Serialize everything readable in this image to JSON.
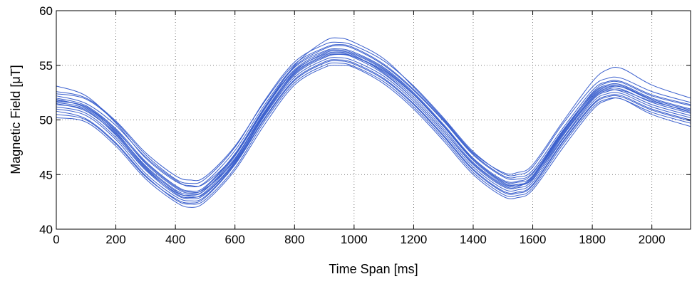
{
  "chart_data": {
    "type": "line",
    "xlabel": "Time Span [ms]",
    "ylabel": "Magnetic Field [μT]",
    "xlim": [
      0,
      2130
    ],
    "ylim": [
      40,
      60
    ],
    "x_ticks": [
      0,
      200,
      400,
      600,
      800,
      1000,
      1200,
      1400,
      1600,
      1800,
      2000
    ],
    "y_ticks": [
      40,
      45,
      50,
      55,
      60
    ],
    "grid": true,
    "grid_style": "dotted",
    "legend": "none",
    "line_color": "#3a5fcd",
    "x": [
      0,
      100,
      200,
      300,
      400,
      450,
      500,
      600,
      700,
      800,
      900,
      950,
      1000,
      1100,
      1200,
      1300,
      1400,
      1500,
      1550,
      1600,
      1700,
      1800,
      1850,
      1900,
      2000,
      2130
    ],
    "series": [
      {
        "values": [
          51.6,
          51.0,
          48.8,
          45.8,
          43.6,
          43.2,
          43.6,
          46.5,
          50.8,
          54.3,
          55.9,
          56.1,
          55.8,
          54.4,
          52.1,
          49.2,
          46.1,
          44.1,
          44.0,
          44.7,
          48.6,
          52.0,
          52.8,
          52.8,
          51.6,
          50.6
        ]
      },
      {
        "values": [
          52.0,
          51.3,
          49.2,
          46.2,
          44.0,
          43.5,
          43.9,
          46.9,
          51.2,
          54.8,
          56.3,
          56.5,
          56.2,
          54.8,
          52.5,
          49.6,
          46.5,
          44.5,
          44.4,
          45.1,
          49.0,
          52.4,
          53.2,
          53.2,
          52.0,
          51.0
        ]
      },
      {
        "values": [
          51.2,
          50.6,
          48.4,
          45.4,
          43.2,
          42.8,
          43.2,
          46.1,
          50.4,
          53.9,
          55.5,
          55.7,
          55.4,
          54.0,
          51.7,
          48.8,
          45.7,
          43.7,
          43.6,
          44.3,
          48.2,
          51.6,
          52.4,
          52.4,
          51.2,
          50.2
        ]
      },
      {
        "values": [
          52.4,
          51.9,
          49.8,
          46.8,
          44.6,
          44.2,
          44.6,
          47.5,
          51.8,
          55.3,
          56.9,
          57.1,
          56.8,
          55.4,
          53.1,
          50.2,
          47.1,
          45.1,
          45.0,
          45.7,
          49.6,
          53.0,
          53.8,
          53.8,
          52.6,
          51.6
        ]
      },
      {
        "values": [
          50.8,
          50.1,
          47.9,
          44.9,
          42.7,
          42.3,
          42.7,
          45.6,
          49.9,
          53.4,
          55.0,
          55.2,
          54.9,
          53.5,
          51.2,
          48.3,
          45.2,
          43.2,
          43.1,
          43.8,
          47.7,
          51.1,
          51.9,
          51.9,
          50.7,
          49.7
        ]
      },
      {
        "values": [
          51.9,
          51.1,
          49.0,
          46.1,
          43.9,
          43.4,
          43.7,
          46.3,
          50.5,
          54.1,
          55.7,
          56.0,
          55.8,
          54.5,
          52.3,
          49.5,
          46.4,
          44.3,
          44.1,
          44.6,
          48.3,
          51.8,
          52.6,
          52.7,
          51.7,
          50.8
        ]
      },
      {
        "values": [
          51.4,
          50.9,
          48.6,
          45.5,
          43.4,
          43.1,
          43.6,
          46.7,
          51.0,
          54.5,
          56.0,
          56.2,
          55.9,
          54.3,
          51.9,
          49.0,
          46.0,
          44.0,
          43.9,
          44.9,
          48.9,
          52.2,
          53.0,
          53.0,
          51.9,
          50.9
        ]
      },
      {
        "values": [
          53.1,
          52.2,
          49.7,
          46.5,
          44.4,
          44.0,
          44.2,
          46.8,
          51.0,
          55.0,
          57.2,
          57.5,
          57.1,
          55.6,
          53.0,
          50.1,
          47.0,
          45.2,
          45.2,
          45.9,
          49.8,
          53.5,
          54.6,
          54.7,
          53.2,
          52.0
        ]
      },
      {
        "values": [
          50.2,
          49.8,
          47.6,
          44.6,
          42.5,
          42.0,
          42.5,
          45.4,
          49.6,
          53.2,
          54.8,
          55.0,
          54.8,
          53.3,
          51.0,
          48.1,
          45.0,
          43.0,
          42.9,
          43.6,
          47.4,
          50.9,
          51.8,
          51.9,
          50.5,
          49.4
        ]
      },
      {
        "values": [
          52.2,
          51.5,
          49.5,
          46.6,
          44.5,
          43.9,
          44.3,
          47.2,
          51.4,
          54.9,
          56.5,
          56.8,
          56.5,
          55.0,
          52.7,
          49.9,
          46.8,
          44.8,
          44.6,
          45.2,
          48.9,
          52.5,
          53.4,
          53.4,
          52.2,
          51.3
        ]
      },
      {
        "values": [
          51.7,
          51.2,
          48.9,
          45.7,
          43.5,
          43.0,
          43.3,
          46.2,
          50.6,
          54.2,
          55.8,
          56.0,
          55.7,
          54.2,
          51.9,
          49.0,
          45.9,
          43.9,
          43.8,
          44.5,
          48.5,
          51.9,
          52.7,
          52.6,
          51.4,
          50.4
        ]
      },
      {
        "values": [
          51.0,
          50.4,
          48.2,
          45.1,
          43.0,
          42.6,
          43.0,
          46.0,
          50.2,
          53.7,
          55.3,
          55.5,
          55.2,
          53.8,
          51.5,
          48.6,
          45.5,
          43.5,
          43.4,
          44.1,
          48.0,
          51.4,
          52.2,
          52.2,
          51.0,
          50.0
        ]
      },
      {
        "values": [
          52.6,
          52.0,
          49.9,
          47.0,
          44.9,
          44.5,
          44.8,
          47.6,
          51.7,
          55.1,
          56.6,
          56.9,
          56.6,
          55.1,
          52.8,
          50.0,
          46.9,
          44.9,
          44.8,
          45.4,
          49.2,
          52.7,
          53.5,
          53.5,
          52.3,
          51.4
        ]
      },
      {
        "values": [
          51.5,
          50.8,
          48.7,
          45.6,
          43.3,
          42.9,
          43.4,
          46.4,
          50.7,
          54.4,
          56.1,
          56.3,
          56.0,
          54.6,
          52.3,
          49.4,
          46.3,
          44.2,
          44.1,
          44.8,
          48.7,
          52.1,
          52.9,
          53.0,
          51.8,
          50.7
        ]
      },
      {
        "values": [
          51.8,
          51.2,
          49.1,
          46.0,
          43.8,
          43.3,
          43.8,
          46.8,
          51.1,
          54.6,
          56.2,
          56.4,
          56.1,
          54.7,
          52.4,
          49.5,
          46.4,
          44.4,
          44.3,
          44.9,
          48.8,
          52.3,
          53.1,
          53.1,
          51.9,
          50.9
        ]
      },
      {
        "values": [
          50.5,
          50.0,
          47.8,
          44.8,
          42.8,
          42.4,
          42.9,
          45.9,
          50.1,
          53.6,
          55.2,
          55.4,
          55.1,
          53.7,
          51.4,
          48.5,
          45.4,
          43.4,
          43.3,
          44.0,
          47.9,
          51.3,
          52.1,
          52.1,
          50.9,
          49.9
        ]
      }
    ]
  }
}
